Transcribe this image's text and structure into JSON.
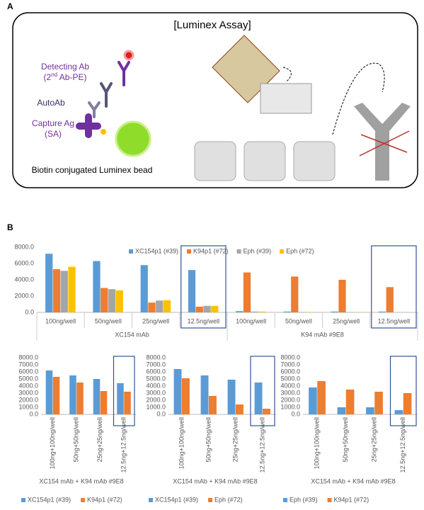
{
  "panel_a": {
    "label": "A",
    "title": "[Luminex Assay]",
    "detecting_ab": "Detecting Ab",
    "detecting_ab_sub": [
      "(2",
      "nd",
      " Ab-PE)"
    ],
    "autoab": "AutoAb",
    "capture_ag": "Capture Ag",
    "capture_ag_sub": "(SA)",
    "bead": "Biotin conjugated Luminex bead"
  },
  "panel_b": {
    "label": "B"
  },
  "chart_data": [
    {
      "type": "bar",
      "legend": "top",
      "grid": false,
      "categories": [
        "100ng/well",
        "50ng/well",
        "25ng/well",
        "12.5ng/well",
        "100ng/well",
        "50ng/well",
        "25ng/well",
        "12.5ng/well"
      ],
      "group_labels": [
        "XC154 mAb",
        "K94 mAb #9E8"
      ],
      "series": [
        {
          "name": "XC154p1 (#39)",
          "color": "#5b9bd5",
          "values": [
            7200,
            6300,
            5800,
            5200,
            150,
            100,
            100,
            100
          ]
        },
        {
          "name": "K94p1 (#72)",
          "color": "#ed7d31",
          "values": [
            5300,
            3000,
            1200,
            700,
            4900,
            4400,
            4000,
            3100
          ]
        },
        {
          "name": "Eph (#39)",
          "color": "#a5a5a5",
          "values": [
            5100,
            2850,
            1450,
            800,
            100,
            50,
            30,
            0
          ]
        },
        {
          "name": "Eph (#72)",
          "color": "#ffc000",
          "values": [
            5600,
            2700,
            1500,
            800,
            100,
            50,
            30,
            0
          ]
        }
      ],
      "ylim": [
        0,
        8000
      ],
      "yticks": [
        {
          "value": 0,
          "label": "0.0"
        },
        {
          "value": 2000,
          "label": "2000.0"
        },
        {
          "value": 4000,
          "label": "4000.0"
        },
        {
          "value": 6000,
          "label": "6000.0"
        },
        {
          "value": 8000,
          "label": "8000.0"
        }
      ]
    },
    {
      "type": "bar",
      "legend": "bottom",
      "grid": false,
      "categories": [
        "100ng+100ng/well",
        "50ng+50ng/well",
        "25ng+25ng/well",
        "12.5ng+12.5ng/well"
      ],
      "xlabel": "XC154 mAb + K94 mAb #9E8",
      "series": [
        {
          "name": "XC154p1 (#39)",
          "color": "#5b9bd5",
          "values": [
            6200,
            5500,
            5000,
            4400
          ]
        },
        {
          "name": "K94p1 (#72)",
          "color": "#ed7d31",
          "values": [
            5300,
            4500,
            3300,
            3200
          ]
        }
      ],
      "ylim": [
        0,
        8000
      ],
      "yticks": [
        {
          "value": 0,
          "label": "0.0"
        },
        {
          "value": 1000,
          "label": "1000.0"
        },
        {
          "value": 2000,
          "label": "2000.0"
        },
        {
          "value": 3000,
          "label": "3000.0"
        },
        {
          "value": 4000,
          "label": "4000.0"
        },
        {
          "value": 5000,
          "label": "5000.0"
        },
        {
          "value": 6000,
          "label": "6000.0"
        },
        {
          "value": 7000,
          "label": "7000.0"
        },
        {
          "value": 8000,
          "label": "8000.0"
        }
      ]
    },
    {
      "type": "bar",
      "legend": "bottom",
      "grid": false,
      "categories": [
        "100ng+100ng/well",
        "50ng+50ng/well",
        "25ng+25ng/well",
        "12.5ng+12.5ng/well"
      ],
      "xlabel": "XC154 mAb + K94 mAb #9E8",
      "series": [
        {
          "name": "XC154p1 (#39)",
          "color": "#5b9bd5",
          "values": [
            6400,
            5500,
            4900,
            4500
          ]
        },
        {
          "name": "Eph (#72)",
          "color": "#ed7d31",
          "values": [
            5100,
            2600,
            1400,
            800
          ]
        }
      ],
      "ylim": [
        0,
        8000
      ],
      "yticks": [
        {
          "value": 0,
          "label": "0.0"
        },
        {
          "value": 1000,
          "label": "1000.0"
        },
        {
          "value": 2000,
          "label": "2000.0"
        },
        {
          "value": 3000,
          "label": "3000.0"
        },
        {
          "value": 4000,
          "label": "4000.0"
        },
        {
          "value": 5000,
          "label": "5000.0"
        },
        {
          "value": 6000,
          "label": "6000.0"
        },
        {
          "value": 7000,
          "label": "7000.0"
        },
        {
          "value": 8000,
          "label": "8000.0"
        }
      ]
    },
    {
      "type": "bar",
      "legend": "bottom",
      "grid": false,
      "categories": [
        "100ng+100ng/well",
        "50ng+50ng/well",
        "25ng+25ng/well",
        "12.5ng+12.5ng/well"
      ],
      "xlabel": "XC154 mAb + K94 mAb #9E8",
      "series": [
        {
          "name": "Eph (#39)",
          "color": "#5b9bd5",
          "values": [
            3800,
            1000,
            1000,
            600
          ]
        },
        {
          "name": "K94p1 (#72)",
          "color": "#ed7d31",
          "values": [
            4700,
            3500,
            3200,
            3000
          ]
        }
      ],
      "ylim": [
        0,
        8000
      ],
      "yticks": [
        {
          "value": 0,
          "label": "0.0"
        },
        {
          "value": 1000,
          "label": "1000.0"
        },
        {
          "value": 2000,
          "label": "2000.0"
        },
        {
          "value": 3000,
          "label": "3000.0"
        },
        {
          "value": 4000,
          "label": "4000.0"
        },
        {
          "value": 5000,
          "label": "5000.0"
        },
        {
          "value": 6000,
          "label": "6000.0"
        },
        {
          "value": 7000,
          "label": "7000.0"
        },
        {
          "value": 8000,
          "label": "8000.0"
        }
      ]
    }
  ]
}
